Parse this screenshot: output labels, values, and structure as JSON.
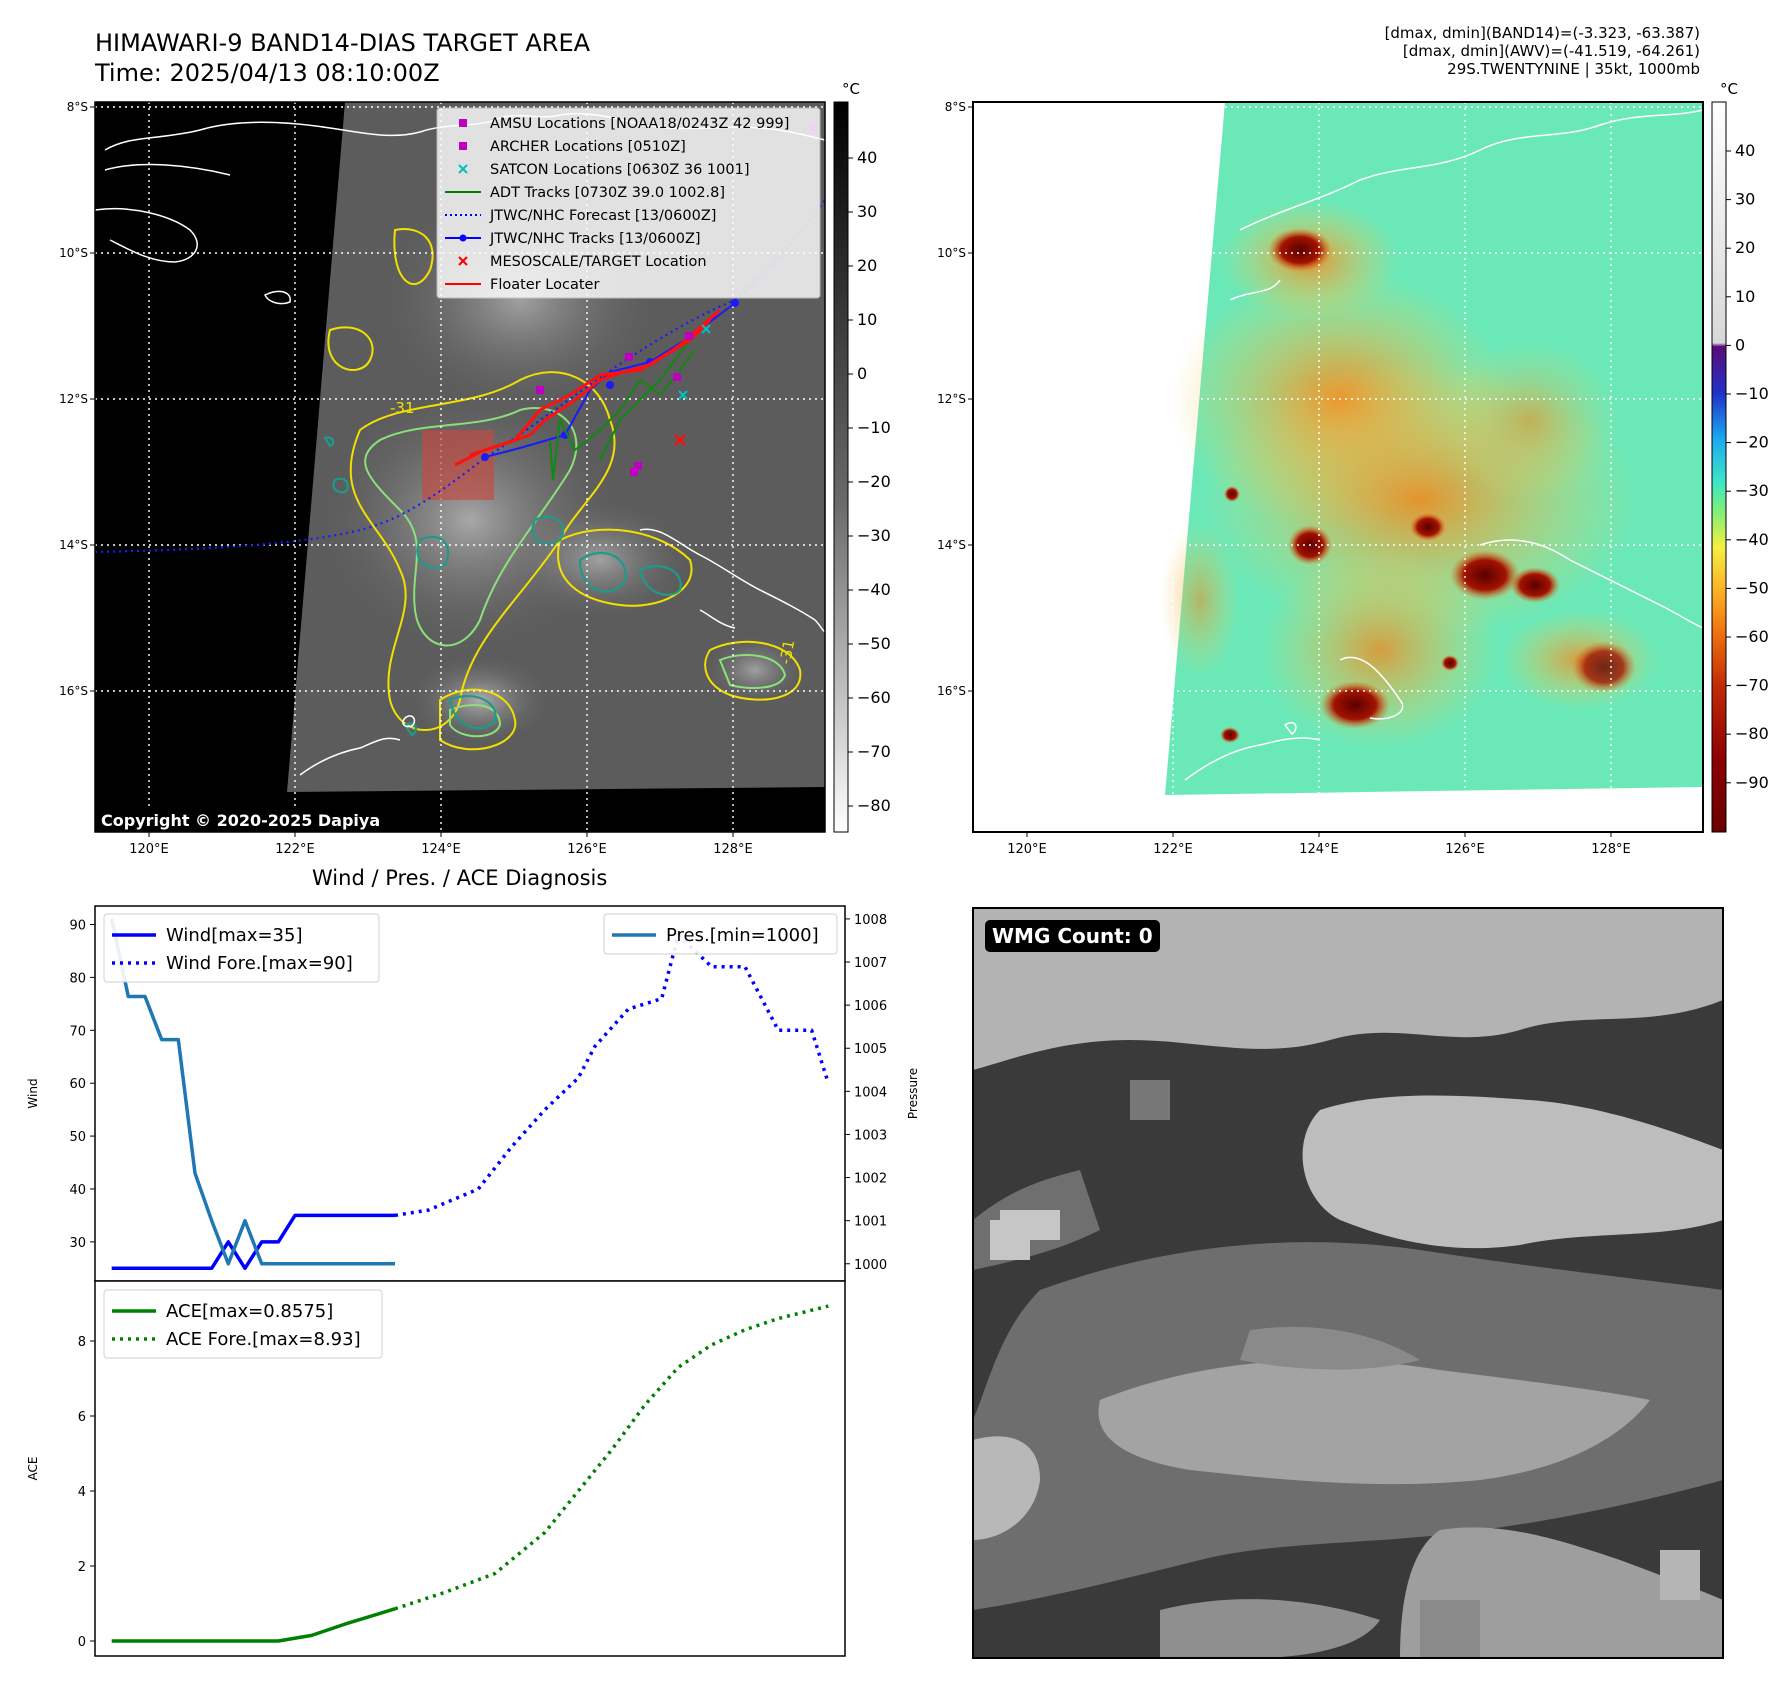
{
  "header": {
    "title_line1": "HIMAWARI-9 BAND14-DIAS TARGET AREA",
    "title_line2": "Time: 2025/04/13 08:10:00Z",
    "info_line1": "[dmax, dmin](BAND14)=(-3.323, -63.387)",
    "info_line2": "[dmax, dmin](AWV)=(-41.519, -64.261)",
    "info_line3": "29S.TWENTYNINE | 35kt, 1000mb"
  },
  "map_axes": {
    "lon_ticks": [
      "120°E",
      "122°E",
      "124°E",
      "126°E",
      "128°E"
    ],
    "lat_ticks": [
      "8°S",
      "10°S",
      "12°S",
      "14°S",
      "16°S"
    ],
    "contour_label_1": "-31",
    "contour_label_2": "-31"
  },
  "ir_map": {
    "copyright": "Copyright © 2020-2025 Dapiya",
    "colorbar_unit": "°C",
    "colorbar_ticks": [
      "40",
      "30",
      "20",
      "10",
      "0",
      "−10",
      "−20",
      "−30",
      "−40",
      "−50",
      "−60",
      "−70",
      "−80"
    ],
    "legend": [
      {
        "label": "AMSU Locations [NOAA18/0243Z 42 999]",
        "marker": "square",
        "color": "#c000c0"
      },
      {
        "label": "ARCHER Locations [0510Z]",
        "marker": "square",
        "color": "#c000c0"
      },
      {
        "label": "SATCON Locations [0630Z 36 1001]",
        "marker": "x",
        "color": "#00c0c0"
      },
      {
        "label": "ADT Tracks [0730Z 39.0 1002.8]",
        "marker": "line",
        "color": "#008000"
      },
      {
        "label": "JTWC/NHC Forecast [13/0600Z]",
        "marker": "dotted",
        "color": "#0000ff"
      },
      {
        "label": "JTWC/NHC Tracks [13/0600Z]",
        "marker": "line-dot",
        "color": "#0000ff"
      },
      {
        "label": "MESOSCALE/TARGET Location",
        "marker": "x",
        "color": "#ff0000"
      },
      {
        "label": "Floater Locater",
        "marker": "line",
        "color": "#ff0000"
      }
    ]
  },
  "awv_map": {
    "colorbar_unit": "°C",
    "colorbar_ticks": [
      "40",
      "30",
      "20",
      "10",
      "0",
      "−10",
      "−20",
      "−30",
      "−40",
      "−50",
      "−60",
      "−70",
      "−80",
      "−90"
    ]
  },
  "wmg_panel": {
    "label": "WMG Count: 0"
  },
  "colors": {
    "wind": "#0000ff",
    "pressure": "#1f77b4",
    "ace": "#008000",
    "background": "#ffffff"
  },
  "chart_data": [
    {
      "type": "line",
      "title": "Wind / Pres. / ACE Diagnosis",
      "ylabel": "Wind",
      "y2label": "Pressure",
      "ylim": [
        22.6,
        93.5
      ],
      "y2lim": [
        999.6,
        1008.3
      ],
      "yticks": [
        30,
        40,
        50,
        60,
        70,
        80,
        90
      ],
      "y2ticks": [
        1000,
        1001,
        1002,
        1003,
        1004,
        1005,
        1006,
        1007,
        1008
      ],
      "legend_left": [
        "Wind[max=35]",
        "Wind Fore.[max=90]"
      ],
      "legend_right": [
        "Pres.[min=1000]"
      ],
      "series": [
        {
          "name": "Wind[max=35]",
          "axis": "left",
          "style": "solid",
          "x": [
            0,
            1,
            2,
            3,
            4,
            5,
            6,
            7,
            8,
            9,
            10,
            11,
            12,
            13,
            14,
            15,
            16,
            17
          ],
          "y": [
            25,
            25,
            25,
            25,
            25,
            25,
            25,
            30,
            25,
            30,
            30,
            35,
            35,
            35,
            35,
            35,
            35,
            35
          ]
        },
        {
          "name": "Wind Fore.[max=90]",
          "axis": "left",
          "style": "dotted",
          "x": [
            17,
            19,
            22,
            24,
            26,
            28,
            29,
            31,
            33,
            34,
            36,
            38,
            40,
            42,
            43
          ],
          "y": [
            35,
            36,
            40,
            48,
            55,
            61,
            67,
            74,
            76,
            88,
            82,
            82,
            70,
            70,
            60
          ]
        },
        {
          "name": "Pres.[min=1000]",
          "axis": "right",
          "style": "solid",
          "x": [
            0,
            1,
            2,
            3,
            4,
            5,
            6,
            7,
            8,
            9,
            10,
            11,
            12,
            13,
            14,
            15,
            16,
            17
          ],
          "y": [
            1008,
            1006.2,
            1006.2,
            1005.2,
            1005.2,
            1002.1,
            1001,
            1000,
            1001,
            1000,
            1000,
            1000,
            1000,
            1000,
            1000,
            1000,
            1000,
            1000
          ]
        }
      ]
    },
    {
      "type": "line",
      "ylabel": "ACE",
      "ylim": [
        -0.4,
        9.6
      ],
      "yticks": [
        0,
        2,
        4,
        6,
        8
      ],
      "legend": [
        "ACE[max=0.8575]",
        "ACE Fore.[max=8.93]"
      ],
      "series": [
        {
          "name": "ACE[max=0.8575]",
          "style": "solid",
          "x": [
            0,
            5,
            6,
            8,
            10,
            12,
            14,
            17
          ],
          "y": [
            0,
            0,
            0,
            0,
            0,
            0.15,
            0.45,
            0.86
          ]
        },
        {
          "name": "ACE Fore.[max=8.93]",
          "style": "dotted",
          "x": [
            17,
            20,
            23,
            26,
            28,
            30,
            32,
            34,
            36,
            38,
            40,
            43
          ],
          "y": [
            0.86,
            1.3,
            1.8,
            2.9,
            4.0,
            5.1,
            6.3,
            7.3,
            7.9,
            8.3,
            8.6,
            8.93
          ]
        }
      ]
    }
  ]
}
